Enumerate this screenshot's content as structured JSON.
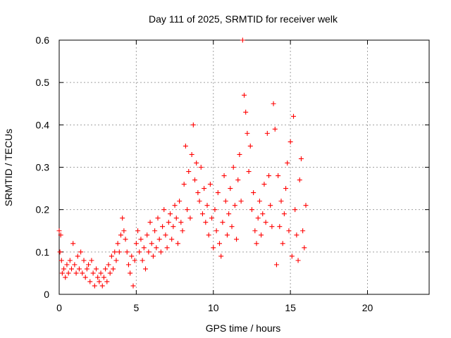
{
  "chart_data": {
    "type": "scatter",
    "title": "Day 111 of 2025, SRMTID for receiver welk",
    "xlabel": "GPS time / hours",
    "ylabel": "SRMTID / TECUs",
    "xlim": [
      0,
      24
    ],
    "ylim": [
      0,
      0.6
    ],
    "x_ticks": [
      0,
      5,
      10,
      15,
      20
    ],
    "x_tick_labels": [
      "0",
      "5",
      "10",
      "15",
      "20"
    ],
    "y_ticks": [
      0,
      0.1,
      0.2,
      0.3,
      0.4,
      0.5,
      0.6
    ],
    "y_tick_labels": [
      "0",
      "0.1",
      "0.2",
      "0.3",
      "0.4",
      "0.5",
      "0.6"
    ],
    "grid": true,
    "marker": "+",
    "marker_color": "#ff0000",
    "series": [
      {
        "name": "SRMTID",
        "points": [
          [
            0.0,
            0.15
          ],
          [
            0.05,
            0.1
          ],
          [
            0.1,
            0.14
          ],
          [
            0.15,
            0.08
          ],
          [
            0.2,
            0.05
          ],
          [
            0.3,
            0.06
          ],
          [
            0.4,
            0.04
          ],
          [
            0.5,
            0.07
          ],
          [
            0.6,
            0.05
          ],
          [
            0.7,
            0.08
          ],
          [
            0.8,
            0.06
          ],
          [
            0.9,
            0.12
          ],
          [
            1.0,
            0.07
          ],
          [
            1.1,
            0.05
          ],
          [
            1.2,
            0.09
          ],
          [
            1.3,
            0.06
          ],
          [
            1.4,
            0.1
          ],
          [
            1.5,
            0.05
          ],
          [
            1.6,
            0.08
          ],
          [
            1.7,
            0.04
          ],
          [
            1.8,
            0.06
          ],
          [
            1.9,
            0.07
          ],
          [
            2.0,
            0.03
          ],
          [
            2.1,
            0.08
          ],
          [
            2.2,
            0.05
          ],
          [
            2.3,
            0.02
          ],
          [
            2.4,
            0.06
          ],
          [
            2.5,
            0.04
          ],
          [
            2.6,
            0.03
          ],
          [
            2.7,
            0.05
          ],
          [
            2.8,
            0.02
          ],
          [
            2.9,
            0.04
          ],
          [
            3.0,
            0.06
          ],
          [
            3.1,
            0.03
          ],
          [
            3.2,
            0.07
          ],
          [
            3.3,
            0.05
          ],
          [
            3.4,
            0.09
          ],
          [
            3.5,
            0.06
          ],
          [
            3.6,
            0.1
          ],
          [
            3.7,
            0.08
          ],
          [
            3.8,
            0.12
          ],
          [
            3.9,
            0.1
          ],
          [
            4.0,
            0.14
          ],
          [
            4.1,
            0.18
          ],
          [
            4.2,
            0.15
          ],
          [
            4.3,
            0.13
          ],
          [
            4.4,
            0.1
          ],
          [
            4.5,
            0.07
          ],
          [
            4.6,
            0.05
          ],
          [
            4.7,
            0.09
          ],
          [
            4.8,
            0.02
          ],
          [
            4.9,
            0.08
          ],
          [
            5.0,
            0.12
          ],
          [
            5.1,
            0.15
          ],
          [
            5.2,
            0.1
          ],
          [
            5.3,
            0.13
          ],
          [
            5.4,
            0.08
          ],
          [
            5.5,
            0.11
          ],
          [
            5.6,
            0.06
          ],
          [
            5.7,
            0.14
          ],
          [
            5.8,
            0.1
          ],
          [
            5.9,
            0.17
          ],
          [
            6.0,
            0.12
          ],
          [
            6.1,
            0.09
          ],
          [
            6.2,
            0.15
          ],
          [
            6.3,
            0.11
          ],
          [
            6.4,
            0.18
          ],
          [
            6.5,
            0.13
          ],
          [
            6.6,
            0.1
          ],
          [
            6.7,
            0.16
          ],
          [
            6.8,
            0.2
          ],
          [
            6.9,
            0.14
          ],
          [
            7.0,
            0.11
          ],
          [
            7.1,
            0.17
          ],
          [
            7.2,
            0.19
          ],
          [
            7.3,
            0.13
          ],
          [
            7.4,
            0.16
          ],
          [
            7.5,
            0.21
          ],
          [
            7.6,
            0.18
          ],
          [
            7.7,
            0.12
          ],
          [
            7.8,
            0.22
          ],
          [
            7.9,
            0.17
          ],
          [
            8.0,
            0.15
          ],
          [
            8.1,
            0.26
          ],
          [
            8.2,
            0.35
          ],
          [
            8.3,
            0.2
          ],
          [
            8.4,
            0.29
          ],
          [
            8.5,
            0.18
          ],
          [
            8.6,
            0.33
          ],
          [
            8.7,
            0.4
          ],
          [
            8.8,
            0.27
          ],
          [
            8.9,
            0.31
          ],
          [
            9.0,
            0.24
          ],
          [
            9.1,
            0.22
          ],
          [
            9.2,
            0.3
          ],
          [
            9.3,
            0.19
          ],
          [
            9.4,
            0.25
          ],
          [
            9.5,
            0.17
          ],
          [
            9.6,
            0.21
          ],
          [
            9.7,
            0.14
          ],
          [
            9.8,
            0.26
          ],
          [
            9.9,
            0.18
          ],
          [
            10.0,
            0.11
          ],
          [
            10.1,
            0.2
          ],
          [
            10.2,
            0.15
          ],
          [
            10.3,
            0.24
          ],
          [
            10.4,
            0.12
          ],
          [
            10.5,
            0.09
          ],
          [
            10.6,
            0.17
          ],
          [
            10.7,
            0.28
          ],
          [
            10.8,
            0.22
          ],
          [
            10.9,
            0.14
          ],
          [
            11.0,
            0.19
          ],
          [
            11.1,
            0.25
          ],
          [
            11.2,
            0.16
          ],
          [
            11.3,
            0.3
          ],
          [
            11.4,
            0.21
          ],
          [
            11.5,
            0.13
          ],
          [
            11.6,
            0.27
          ],
          [
            11.7,
            0.33
          ],
          [
            11.8,
            0.22
          ],
          [
            11.9,
            0.6
          ],
          [
            12.0,
            0.47
          ],
          [
            12.1,
            0.43
          ],
          [
            12.2,
            0.38
          ],
          [
            12.3,
            0.29
          ],
          [
            12.4,
            0.35
          ],
          [
            12.5,
            0.2
          ],
          [
            12.6,
            0.24
          ],
          [
            12.7,
            0.15
          ],
          [
            12.8,
            0.12
          ],
          [
            12.9,
            0.18
          ],
          [
            13.0,
            0.22
          ],
          [
            13.1,
            0.14
          ],
          [
            13.2,
            0.19
          ],
          [
            13.3,
            0.26
          ],
          [
            13.4,
            0.17
          ],
          [
            13.5,
            0.38
          ],
          [
            13.6,
            0.28
          ],
          [
            13.7,
            0.21
          ],
          [
            13.8,
            0.16
          ],
          [
            13.9,
            0.45
          ],
          [
            14.0,
            0.39
          ],
          [
            14.1,
            0.07
          ],
          [
            14.2,
            0.28
          ],
          [
            14.3,
            0.16
          ],
          [
            14.4,
            0.22
          ],
          [
            14.5,
            0.12
          ],
          [
            14.6,
            0.19
          ],
          [
            14.7,
            0.25
          ],
          [
            14.8,
            0.31
          ],
          [
            14.9,
            0.15
          ],
          [
            15.0,
            0.36
          ],
          [
            15.1,
            0.09
          ],
          [
            15.2,
            0.42
          ],
          [
            15.3,
            0.2
          ],
          [
            15.4,
            0.14
          ],
          [
            15.5,
            0.08
          ],
          [
            15.6,
            0.27
          ],
          [
            15.7,
            0.32
          ],
          [
            15.8,
            0.15
          ],
          [
            15.9,
            0.11
          ],
          [
            16.0,
            0.21
          ]
        ]
      }
    ]
  }
}
